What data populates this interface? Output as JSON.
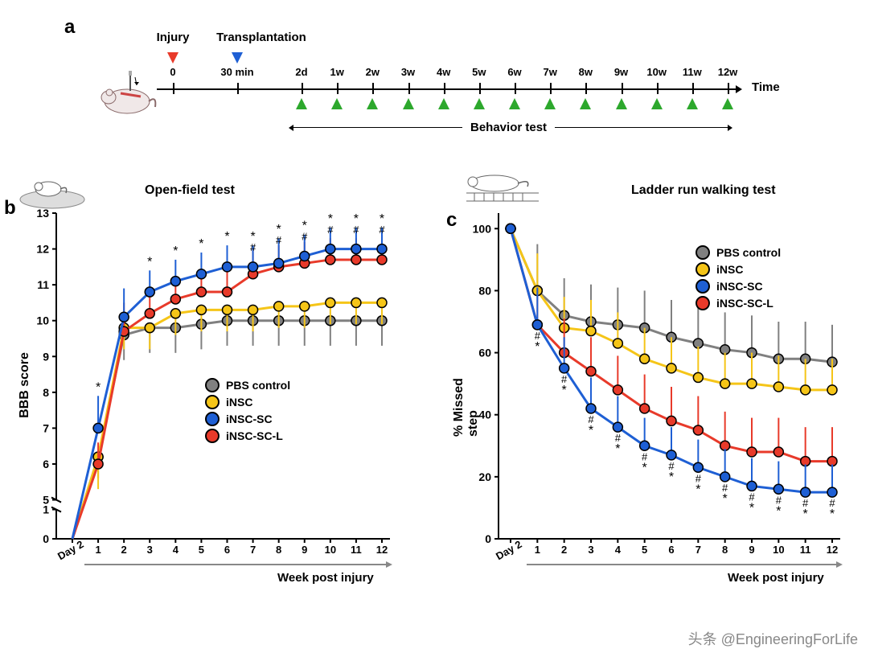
{
  "colors": {
    "pbs": "#808080",
    "insc": "#f5c518",
    "insc_sc": "#1e5fd4",
    "insc_scl": "#e83a2a",
    "green": "#2da82d",
    "black": "#000000"
  },
  "panel_a": {
    "label": "a",
    "injury_label": "Injury",
    "transplant_label": "Transplantation",
    "time_label": "Time",
    "behavior_label": "Behavior test",
    "ticks": [
      "0",
      "30 min",
      "2d",
      "1w",
      "2w",
      "3w",
      "4w",
      "5w",
      "6w",
      "7w",
      "8w",
      "9w",
      "10w",
      "11w",
      "12w"
    ],
    "injury_pos": 0,
    "transplant_pos": 1,
    "green_tri_start": 2,
    "green_tri_end": 14
  },
  "panel_b": {
    "label": "b",
    "title": "Open-field test",
    "ylabel": "BBB score",
    "xlabel": "Week post injury",
    "x_ticks": [
      "Day 2",
      "1",
      "2",
      "3",
      "4",
      "5",
      "6",
      "7",
      "8",
      "9",
      "10",
      "11",
      "12"
    ],
    "y_ticks_lower": [
      0,
      1
    ],
    "y_ticks_upper": [
      5,
      6,
      7,
      8,
      9,
      10,
      11,
      12,
      13
    ],
    "break": true,
    "ylim_lower": [
      0,
      1
    ],
    "ylim_upper": [
      5,
      13
    ],
    "series": {
      "pbs": [
        0,
        6.2,
        9.6,
        9.8,
        9.8,
        9.9,
        10.0,
        10.0,
        10.0,
        10.0,
        10.0,
        10.0,
        10.0
      ],
      "insc": [
        0,
        6.2,
        9.8,
        9.8,
        10.2,
        10.3,
        10.3,
        10.3,
        10.4,
        10.4,
        10.5,
        10.5,
        10.5
      ],
      "insc_sc": [
        0,
        7.0,
        10.1,
        10.8,
        11.1,
        11.3,
        11.5,
        11.5,
        11.6,
        11.8,
        12.0,
        12.0,
        12.0
      ],
      "insc_scl": [
        0,
        6.0,
        9.7,
        10.2,
        10.6,
        10.8,
        10.8,
        11.3,
        11.5,
        11.6,
        11.7,
        11.7,
        11.7
      ]
    },
    "error": {
      "pbs": [
        0,
        0.6,
        0.7,
        0.7,
        0.7,
        0.7,
        0.7,
        0.7,
        0.7,
        0.7,
        0.7,
        0.7,
        0.7
      ],
      "insc": [
        0,
        0.9,
        0.6,
        0.6,
        0.6,
        0.6,
        0.6,
        0.6,
        0.6,
        0.6,
        0.6,
        0.6,
        0.6
      ],
      "insc_sc": [
        0,
        0.9,
        0.8,
        0.6,
        0.6,
        0.6,
        0.6,
        0.6,
        0.7,
        0.6,
        0.6,
        0.6,
        0.6
      ],
      "insc_scl": [
        0,
        0.6,
        0.8,
        0.6,
        0.6,
        0.6,
        0.6,
        0.7,
        0.6,
        0.6,
        0.6,
        0.6,
        0.6
      ]
    },
    "sig_star": [
      1,
      3,
      4,
      5,
      6,
      7,
      8,
      9,
      10,
      11,
      12
    ],
    "sig_hash": [
      7,
      8,
      9,
      10,
      11,
      12
    ]
  },
  "panel_c": {
    "label": "c",
    "title": "Ladder run walking test",
    "ylabel": "% Missed step",
    "xlabel": "Week post injury",
    "x_ticks": [
      "Day 2",
      "1",
      "2",
      "3",
      "4",
      "5",
      "6",
      "7",
      "8",
      "9",
      "10",
      "11",
      "12"
    ],
    "y_ticks": [
      0,
      20,
      40,
      60,
      80,
      100
    ],
    "ylim": [
      0,
      105
    ],
    "series": {
      "pbs": [
        100,
        80,
        72,
        70,
        69,
        68,
        65,
        63,
        61,
        60,
        58,
        58,
        57
      ],
      "insc": [
        100,
        80,
        68,
        67,
        63,
        58,
        55,
        52,
        50,
        50,
        49,
        48,
        48
      ],
      "insc_sc": [
        100,
        69,
        55,
        42,
        36,
        30,
        27,
        23,
        20,
        17,
        16,
        15,
        15
      ],
      "insc_scl": [
        100,
        69,
        60,
        54,
        48,
        42,
        38,
        35,
        30,
        28,
        28,
        25,
        25
      ]
    },
    "error": {
      "pbs": [
        0,
        15,
        12,
        12,
        12,
        12,
        12,
        12,
        12,
        12,
        12,
        12,
        12
      ],
      "insc": [
        0,
        12,
        10,
        10,
        10,
        10,
        10,
        10,
        10,
        10,
        10,
        10,
        10
      ],
      "insc_sc": [
        0,
        12,
        10,
        10,
        10,
        9,
        9,
        9,
        9,
        9,
        9,
        9,
        9
      ],
      "insc_scl": [
        0,
        12,
        11,
        11,
        11,
        11,
        11,
        11,
        11,
        11,
        11,
        11,
        11
      ]
    },
    "sig_star": [
      1,
      2,
      3,
      4,
      5,
      6,
      7,
      8,
      9,
      10,
      11,
      12
    ],
    "sig_hash": [
      1,
      2,
      3,
      4,
      5,
      6,
      7,
      8,
      9,
      10,
      11,
      12
    ]
  },
  "legend": {
    "items": [
      {
        "key": "pbs",
        "label": "PBS control"
      },
      {
        "key": "insc",
        "label": "iNSC"
      },
      {
        "key": "insc_sc",
        "label": "iNSC-SC"
      },
      {
        "key": "insc_scl",
        "label": "iNSC-SC-L"
      }
    ]
  },
  "watermark": "头条 @EngineeringForLife",
  "marker_radius": 6,
  "line_width": 3,
  "error_width": 2,
  "font_size_axis": 14
}
